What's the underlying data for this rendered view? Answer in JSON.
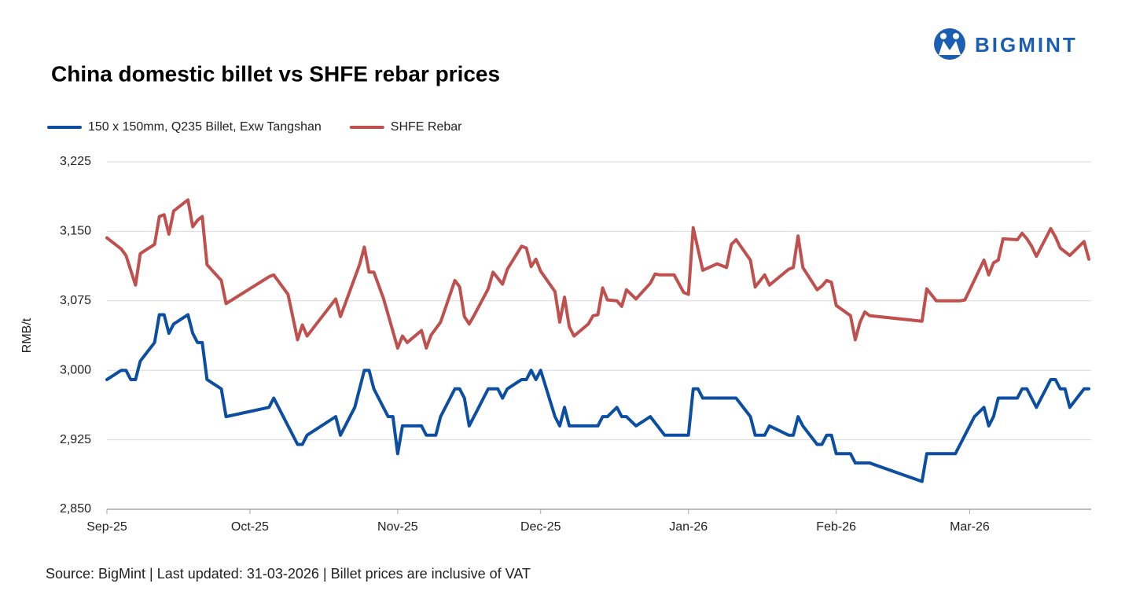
{
  "logo": "BIGMINT",
  "chart_data": {
    "type": "line",
    "title": "China domestic billet vs SHFE rebar prices",
    "ylabel": "RMB/t",
    "source": "Source: BigMint | Last updated: 31-03-2026 | Billet prices are inclusive of VAT",
    "xlim": [
      0,
      206
    ],
    "xticks": [
      {
        "value": 0,
        "label": "Sep-25"
      },
      {
        "value": 30,
        "label": "Oct-25"
      },
      {
        "value": 61,
        "label": "Nov-25"
      },
      {
        "value": 91,
        "label": "Dec-25"
      },
      {
        "value": 122,
        "label": "Jan-26"
      },
      {
        "value": 153,
        "label": "Feb-26"
      },
      {
        "value": 181,
        "label": "Mar-26"
      }
    ],
    "ylim": [
      2850,
      3225
    ],
    "yticks": [
      {
        "value": 2850,
        "label": "2,850"
      },
      {
        "value": 2925,
        "label": "2,925"
      },
      {
        "value": 3000,
        "label": "3,000"
      },
      {
        "value": 3075,
        "label": "3,075"
      },
      {
        "value": 3150,
        "label": "3,150"
      },
      {
        "value": 3225,
        "label": "3,225"
      }
    ],
    "grid": true,
    "legend": "top",
    "series": [
      {
        "name": "150 x 150mm, Q235 Billet, Exw Tangshan",
        "color": "#0b4ea2",
        "x": [
          0,
          3,
          4,
          5,
          6,
          7,
          10,
          11,
          12,
          13,
          14,
          17,
          18,
          19,
          20,
          21,
          24,
          25,
          34,
          35,
          40,
          41,
          42,
          48,
          49,
          52,
          54,
          55,
          56,
          59,
          60,
          61,
          62,
          66,
          67,
          69,
          70,
          73,
          74,
          75,
          76,
          80,
          82,
          83,
          84,
          87,
          88,
          89,
          90,
          91,
          94,
          95,
          96,
          97,
          103,
          104,
          105,
          107,
          108,
          109,
          111,
          114,
          117,
          122,
          123,
          124,
          125,
          132,
          135,
          136,
          138,
          139,
          143,
          144,
          145,
          146,
          149,
          150,
          151,
          152,
          153,
          156,
          157,
          160,
          171,
          172,
          178,
          179,
          180,
          182,
          184,
          185,
          186,
          187,
          191,
          192,
          193,
          195,
          198,
          199,
          200,
          201,
          202,
          205,
          206
        ],
        "values": [
          2990,
          3000,
          3000,
          2990,
          2990,
          3010,
          3030,
          3060,
          3060,
          3040,
          3050,
          3060,
          3040,
          3030,
          3030,
          2990,
          2980,
          2950,
          2960,
          2970,
          2920,
          2920,
          2930,
          2950,
          2930,
          2960,
          3000,
          3000,
          2980,
          2950,
          2950,
          2910,
          2940,
          2940,
          2930,
          2930,
          2950,
          2980,
          2980,
          2970,
          2940,
          2980,
          2980,
          2970,
          2980,
          2990,
          2990,
          3000,
          2990,
          3000,
          2950,
          2940,
          2960,
          2940,
          2940,
          2950,
          2950,
          2960,
          2950,
          2950,
          2940,
          2950,
          2930,
          2930,
          2980,
          2980,
          2970,
          2970,
          2950,
          2930,
          2930,
          2940,
          2930,
          2930,
          2950,
          2940,
          2920,
          2920,
          2930,
          2930,
          2910,
          2910,
          2900,
          2900,
          2880,
          2910,
          2910,
          2920,
          2930,
          2950,
          2960,
          2940,
          2950,
          2970,
          2970,
          2980,
          2980,
          2960,
          2990,
          2990,
          2980,
          2980,
          2960,
          2980,
          2980
        ]
      },
      {
        "name": "SHFE Rebar",
        "color": "#c0504d",
        "x": [
          0,
          3,
          4,
          6,
          7,
          10,
          11,
          12,
          13,
          14,
          17,
          18,
          19,
          20,
          21,
          24,
          25,
          34,
          35,
          38,
          40,
          41,
          42,
          48,
          49,
          53,
          54,
          55,
          56,
          58,
          60,
          61,
          62,
          63,
          66,
          67,
          68,
          70,
          73,
          74,
          75,
          76,
          77,
          80,
          81,
          83,
          84,
          87,
          88,
          89,
          90,
          91,
          94,
          95,
          96,
          97,
          98,
          101,
          102,
          103,
          104,
          105,
          107,
          108,
          109,
          111,
          114,
          115,
          116,
          119,
          121,
          122,
          123,
          125,
          128,
          130,
          131,
          132,
          135,
          136,
          138,
          139,
          143,
          144,
          145,
          146,
          149,
          150,
          151,
          152,
          153,
          156,
          157,
          158,
          159,
          160,
          171,
          172,
          174,
          179,
          180,
          184,
          185,
          186,
          187,
          188,
          191,
          192,
          193,
          194,
          195,
          198,
          199,
          200,
          202,
          205,
          206
        ],
        "values": [
          3143,
          3131,
          3124,
          3092,
          3126,
          3136,
          3166,
          3168,
          3147,
          3172,
          3184,
          3155,
          3162,
          3166,
          3114,
          3097,
          3072,
          3101,
          3103,
          3082,
          3033,
          3049,
          3037,
          3077,
          3058,
          3114,
          3133,
          3106,
          3106,
          3078,
          3042,
          3024,
          3037,
          3030,
          3043,
          3024,
          3038,
          3052,
          3097,
          3090,
          3058,
          3050,
          3059,
          3088,
          3106,
          3093,
          3109,
          3134,
          3132,
          3112,
          3120,
          3107,
          3085,
          3052,
          3079,
          3047,
          3037,
          3050,
          3059,
          3060,
          3089,
          3076,
          3075,
          3069,
          3087,
          3077,
          3094,
          3104,
          3103,
          3103,
          3084,
          3082,
          3154,
          3108,
          3115,
          3111,
          3136,
          3141,
          3119,
          3090,
          3103,
          3092,
          3109,
          3111,
          3145,
          3111,
          3087,
          3091,
          3097,
          3095,
          3070,
          3059,
          3033,
          3052,
          3063,
          3059,
          3053,
          3088,
          3075,
          3075,
          3076,
          3119,
          3103,
          3116,
          3119,
          3142,
          3141,
          3148,
          3142,
          3134,
          3123,
          3153,
          3144,
          3132,
          3124,
          3139,
          3120
        ]
      }
    ]
  }
}
